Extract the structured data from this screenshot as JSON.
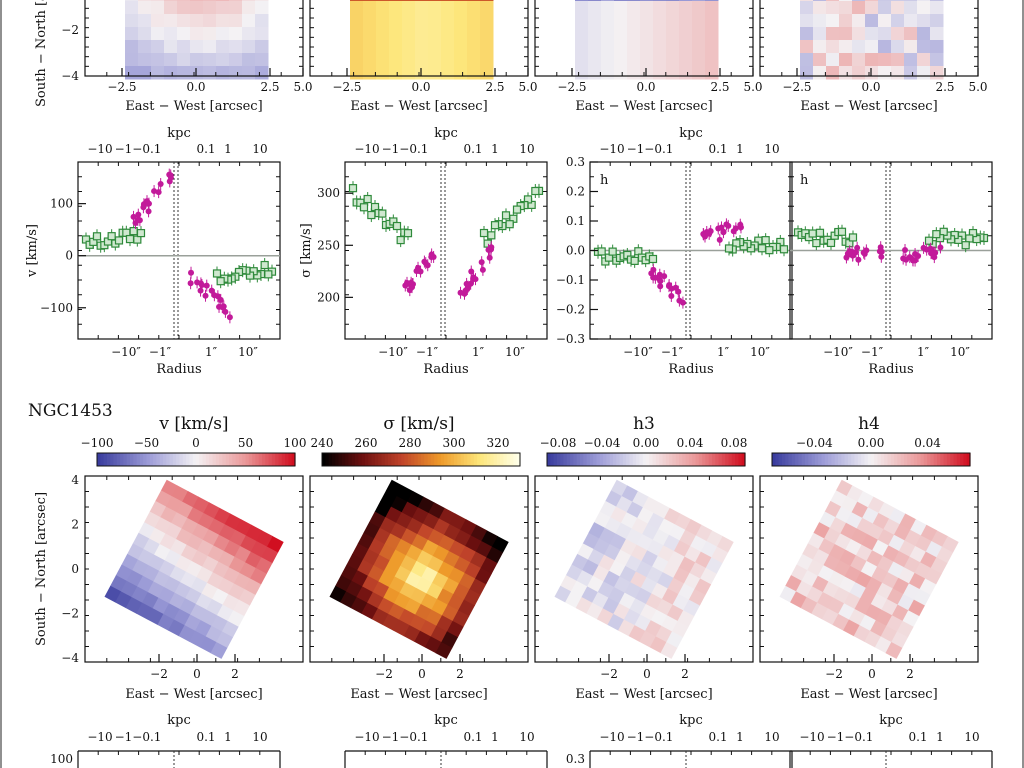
{
  "galaxy_label": "NGC1453",
  "colors": {
    "diverging": [
      "#3a3d9e",
      "#9a9ad6",
      "#f4f2f4",
      "#ea9a9a",
      "#d10f20"
    ],
    "heat": [
      "#000000",
      "#6e1010",
      "#c0432a",
      "#ee9a2a",
      "#fde67a",
      "#ffffe8"
    ],
    "model_points": "#2f8a3b",
    "data_points": "#c21a9a",
    "zero_line": "#9aa09a"
  },
  "chart_data": [
    {
      "type": "heatmap",
      "panel": "top-map-v",
      "xlabel": "East − West [arcsec]",
      "ylabel": "South − North [arcsec]",
      "xticks": [
        "−2.5",
        "0.0",
        "2.5",
        "5.0"
      ],
      "yticks": [
        "−2",
        "−4"
      ],
      "colormap": "diverging"
    },
    {
      "type": "heatmap",
      "panel": "top-map-sigma",
      "xlabel": "East − West [arcsec]",
      "xticks": [
        "−2.5",
        "0.0",
        "2.5",
        "5.0"
      ],
      "colormap": "heat"
    },
    {
      "type": "heatmap",
      "panel": "top-map-h3",
      "xlabel": "East − West [arcsec]",
      "xticks": [
        "−2.5",
        "0.0",
        "2.5",
        "5.0"
      ],
      "colormap": "diverging"
    },
    {
      "type": "heatmap",
      "panel": "top-map-h4",
      "xlabel": "East − West [arcsec]",
      "xticks": [
        "−2.5",
        "0.0",
        "2.5",
        "5.0"
      ],
      "colormap": "diverging"
    },
    {
      "type": "scatter",
      "panel": "top-profile-v",
      "ylabel": "v [km/s]",
      "xlabel": "Radius",
      "top_axis_label": "kpc",
      "top_ticks": [
        "−10",
        "−1−0.1",
        "0.1",
        "1",
        "10"
      ],
      "bottom_ticks": [
        "−10″",
        "−1″",
        "1″",
        "10″"
      ],
      "yticks": [
        "100",
        "0",
        "−100"
      ],
      "ylim": [
        -160,
        180
      ]
    },
    {
      "type": "scatter",
      "panel": "top-profile-sigma",
      "ylabel": "σ [km/s]",
      "xlabel": "Radius",
      "top_axis_label": "kpc",
      "top_ticks": [
        "−10",
        "−1−0.1",
        "0.1",
        "1",
        "10"
      ],
      "bottom_ticks": [
        "−10″",
        "−1″",
        "1″",
        "10″"
      ],
      "yticks": [
        "300",
        "250",
        "200"
      ],
      "ylim": [
        160,
        330
      ]
    },
    {
      "type": "scatter",
      "panel": "top-profile-h3",
      "annotation": "h3",
      "xlabel": "Radius",
      "top_axis_label": "kpc",
      "top_ticks": [
        "−10",
        "−1−0.1",
        "0.1",
        "1",
        "10"
      ],
      "bottom_ticks": [
        "−10″",
        "−1″",
        "1″",
        "10″"
      ],
      "yticks": [
        "0.3",
        "0.2",
        "0.1",
        "0.0",
        "−0.1",
        "−0.2",
        "−0.3"
      ],
      "ylim": [
        -0.3,
        0.3
      ]
    },
    {
      "type": "scatter",
      "panel": "top-profile-h4",
      "annotation": "h4",
      "xlabel": "Radius",
      "bottom_ticks": [
        "−10″",
        "−1″",
        "1″",
        "10″"
      ],
      "ylim": [
        -0.3,
        0.3
      ]
    },
    {
      "type": "heatmap",
      "panel": "ngc1453-map-v",
      "title": "v [km/s]",
      "colorbar_ticks": [
        "−100",
        "−50",
        "0",
        "50",
        "100"
      ],
      "clim": [
        -100,
        100
      ],
      "xlabel": "East − West [arcsec]",
      "ylabel": "South − North [arcsec]",
      "xticks": [
        "−2",
        "0",
        "2"
      ],
      "yticks": [
        "4",
        "2",
        "0",
        "−2",
        "−4"
      ],
      "colormap": "diverging"
    },
    {
      "type": "heatmap",
      "panel": "ngc1453-map-sigma",
      "title": "σ [km/s]",
      "colorbar_ticks": [
        "240",
        "260",
        "280",
        "300",
        "320"
      ],
      "clim": [
        240,
        330
      ],
      "xlabel": "East − West [arcsec]",
      "xticks": [
        "−2",
        "0",
        "2"
      ],
      "colormap": "heat"
    },
    {
      "type": "heatmap",
      "panel": "ngc1453-map-h3",
      "title": "h3",
      "colorbar_ticks": [
        "−0.08",
        "−0.04",
        "0.00",
        "0.04",
        "0.08"
      ],
      "clim": [
        -0.09,
        0.09
      ],
      "xlabel": "East − West [arcsec]",
      "xticks": [
        "−2",
        "0",
        "2"
      ],
      "colormap": "diverging"
    },
    {
      "type": "heatmap",
      "panel": "ngc1453-map-h4",
      "title": "h4",
      "colorbar_ticks": [
        "−0.04",
        "0.00",
        "0.04"
      ],
      "clim": [
        -0.07,
        0.07
      ],
      "xlabel": "East − West [arcsec]",
      "xticks": [
        "−2",
        "0",
        "2"
      ],
      "colormap": "diverging"
    },
    {
      "type": "scatter",
      "panel": "ngc1453-profile-v",
      "top_axis_label": "kpc",
      "top_ticks": [
        "−10",
        "−1−0.1",
        "0.1",
        "1",
        "10"
      ],
      "yticks": [
        "100"
      ]
    },
    {
      "type": "scatter",
      "panel": "ngc1453-profile-sigma",
      "top_axis_label": "kpc",
      "top_ticks": [
        "−10",
        "−1−0.1",
        "0.1",
        "1",
        "10"
      ]
    },
    {
      "type": "scatter",
      "panel": "ngc1453-profile-h3",
      "top_axis_label": "kpc",
      "top_ticks": [
        "−10",
        "−1−0.1",
        "0.1",
        "1",
        "10"
      ],
      "yticks": [
        "0.3"
      ]
    },
    {
      "type": "scatter",
      "panel": "ngc1453-profile-h4",
      "top_axis_label": "kpc",
      "top_ticks": [
        "−10",
        "−1−0.1",
        "0.1",
        "1",
        "10"
      ]
    }
  ]
}
